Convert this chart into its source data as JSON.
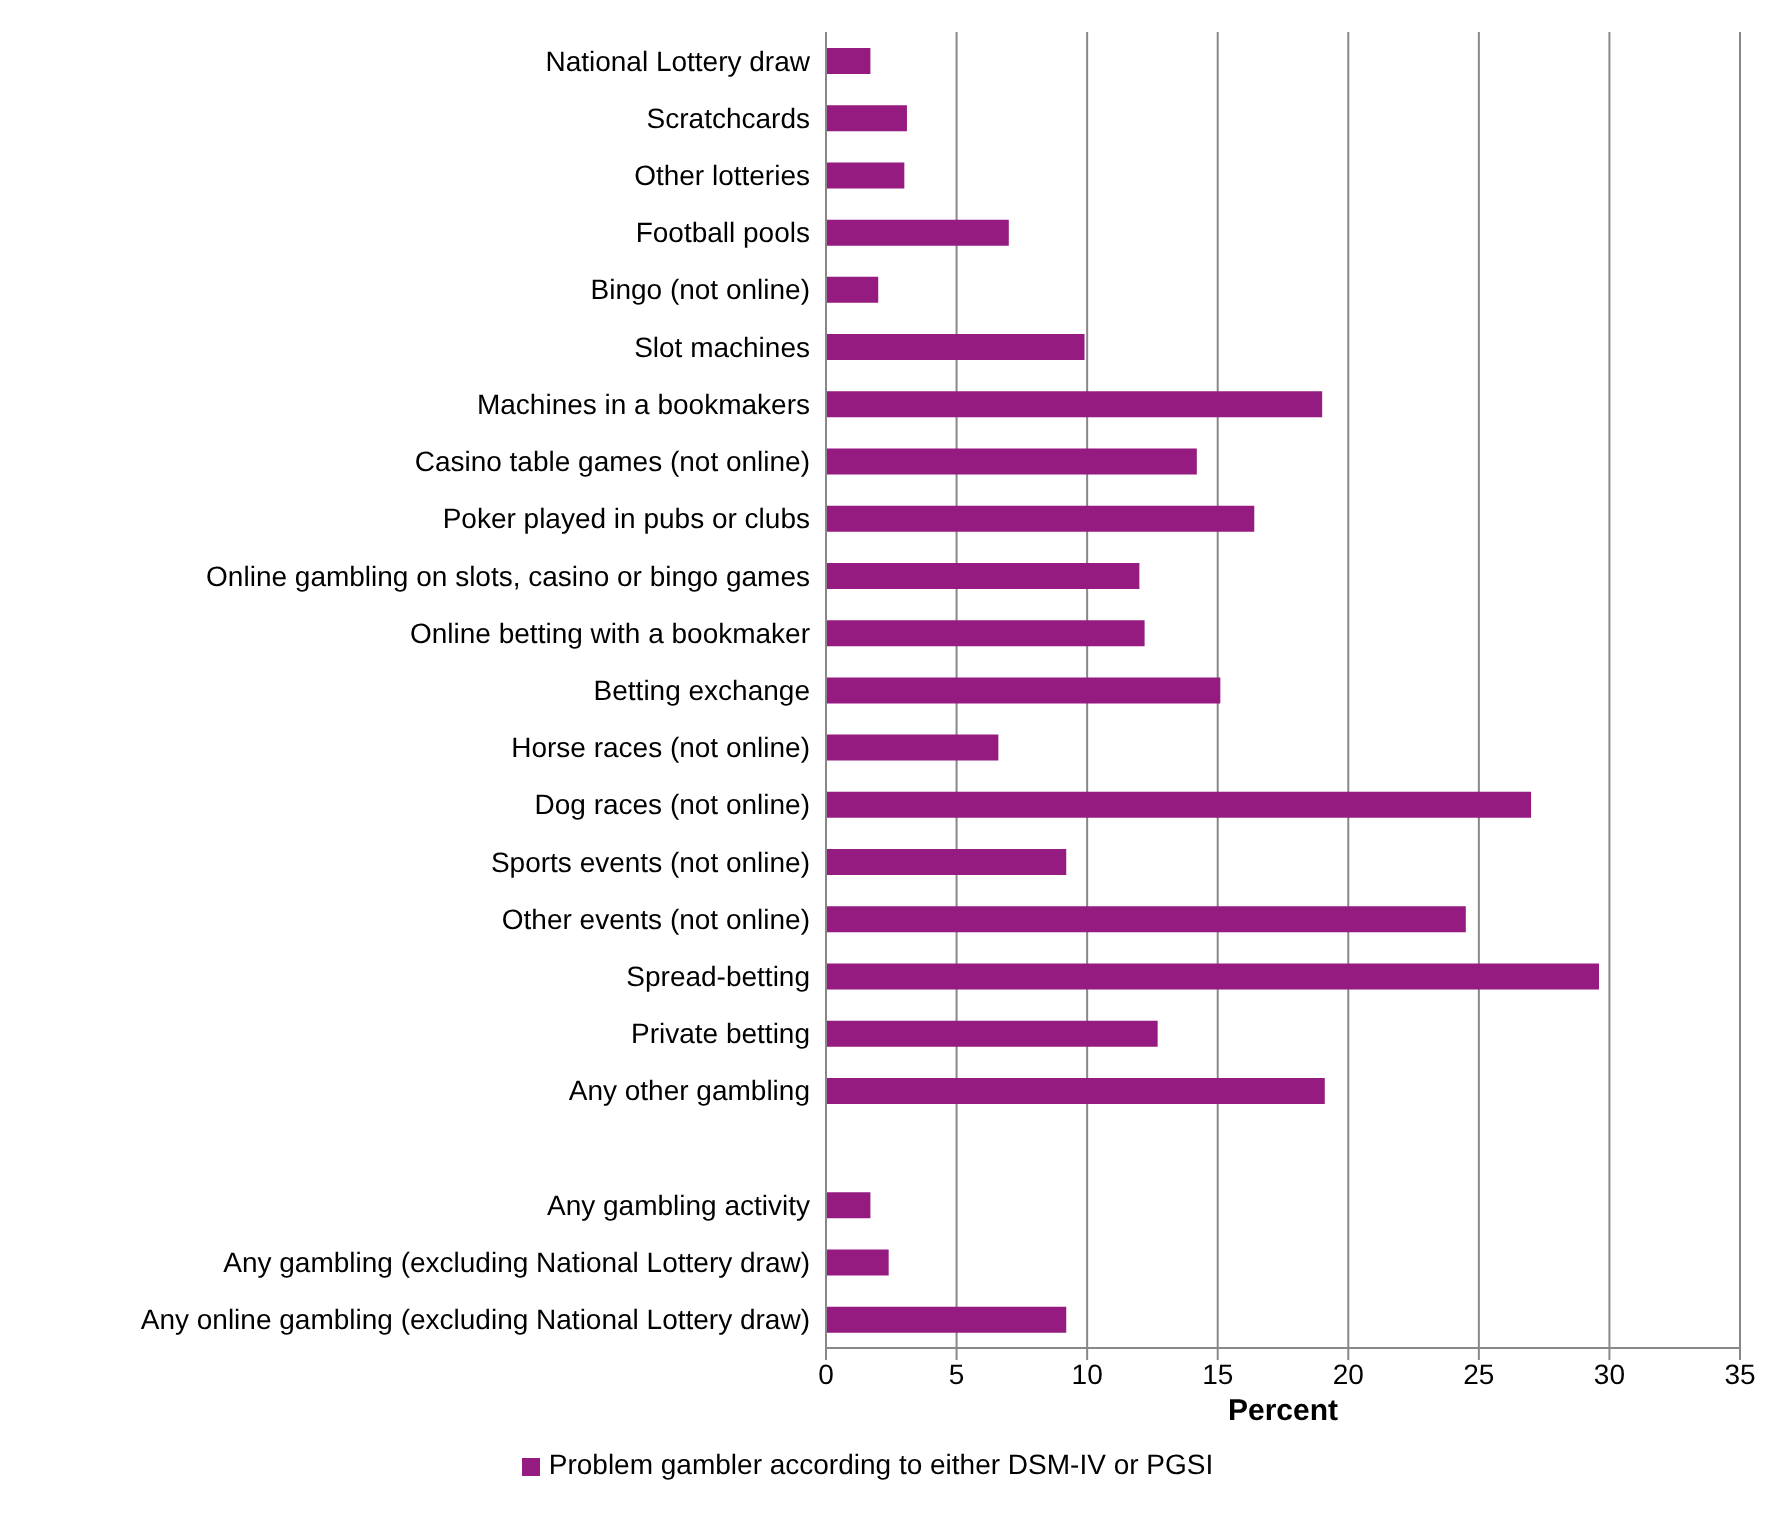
{
  "chart_data": {
    "type": "bar",
    "orientation": "horizontal",
    "xlabel": "Percent",
    "categories": [
      "National Lottery draw",
      "Scratchcards",
      "Other lotteries",
      "Football pools",
      "Bingo (not online)",
      "Slot machines",
      "Machines in a bookmakers",
      "Casino table games (not online)",
      "Poker played in pubs or clubs",
      "Online gambling on slots, casino or bingo games",
      "Online betting with a bookmaker",
      "Betting exchange",
      "Horse races (not online)",
      "Dog races (not online)",
      "Sports events (not online)",
      "Other events (not online)",
      "Spread-betting",
      "Private betting",
      "Any other gambling",
      null,
      "Any gambling activity",
      "Any gambling (excluding National Lottery draw)",
      "Any online gambling (excluding National Lottery draw)"
    ],
    "series": [
      {
        "name": "Problem gambler according to either DSM-IV or PGSI",
        "color": "#951b81",
        "values": [
          1.7,
          3.1,
          3.0,
          7.0,
          2.0,
          9.9,
          19.0,
          14.2,
          16.4,
          12.0,
          12.2,
          15.1,
          6.6,
          27.0,
          9.2,
          24.5,
          29.6,
          12.7,
          19.1,
          null,
          1.7,
          2.4,
          9.2
        ]
      }
    ],
    "xlim": [
      0,
      35
    ],
    "xticks": [
      0,
      5,
      10,
      15,
      20,
      25,
      30,
      35
    ],
    "grid": "x",
    "legend": "bottom"
  }
}
